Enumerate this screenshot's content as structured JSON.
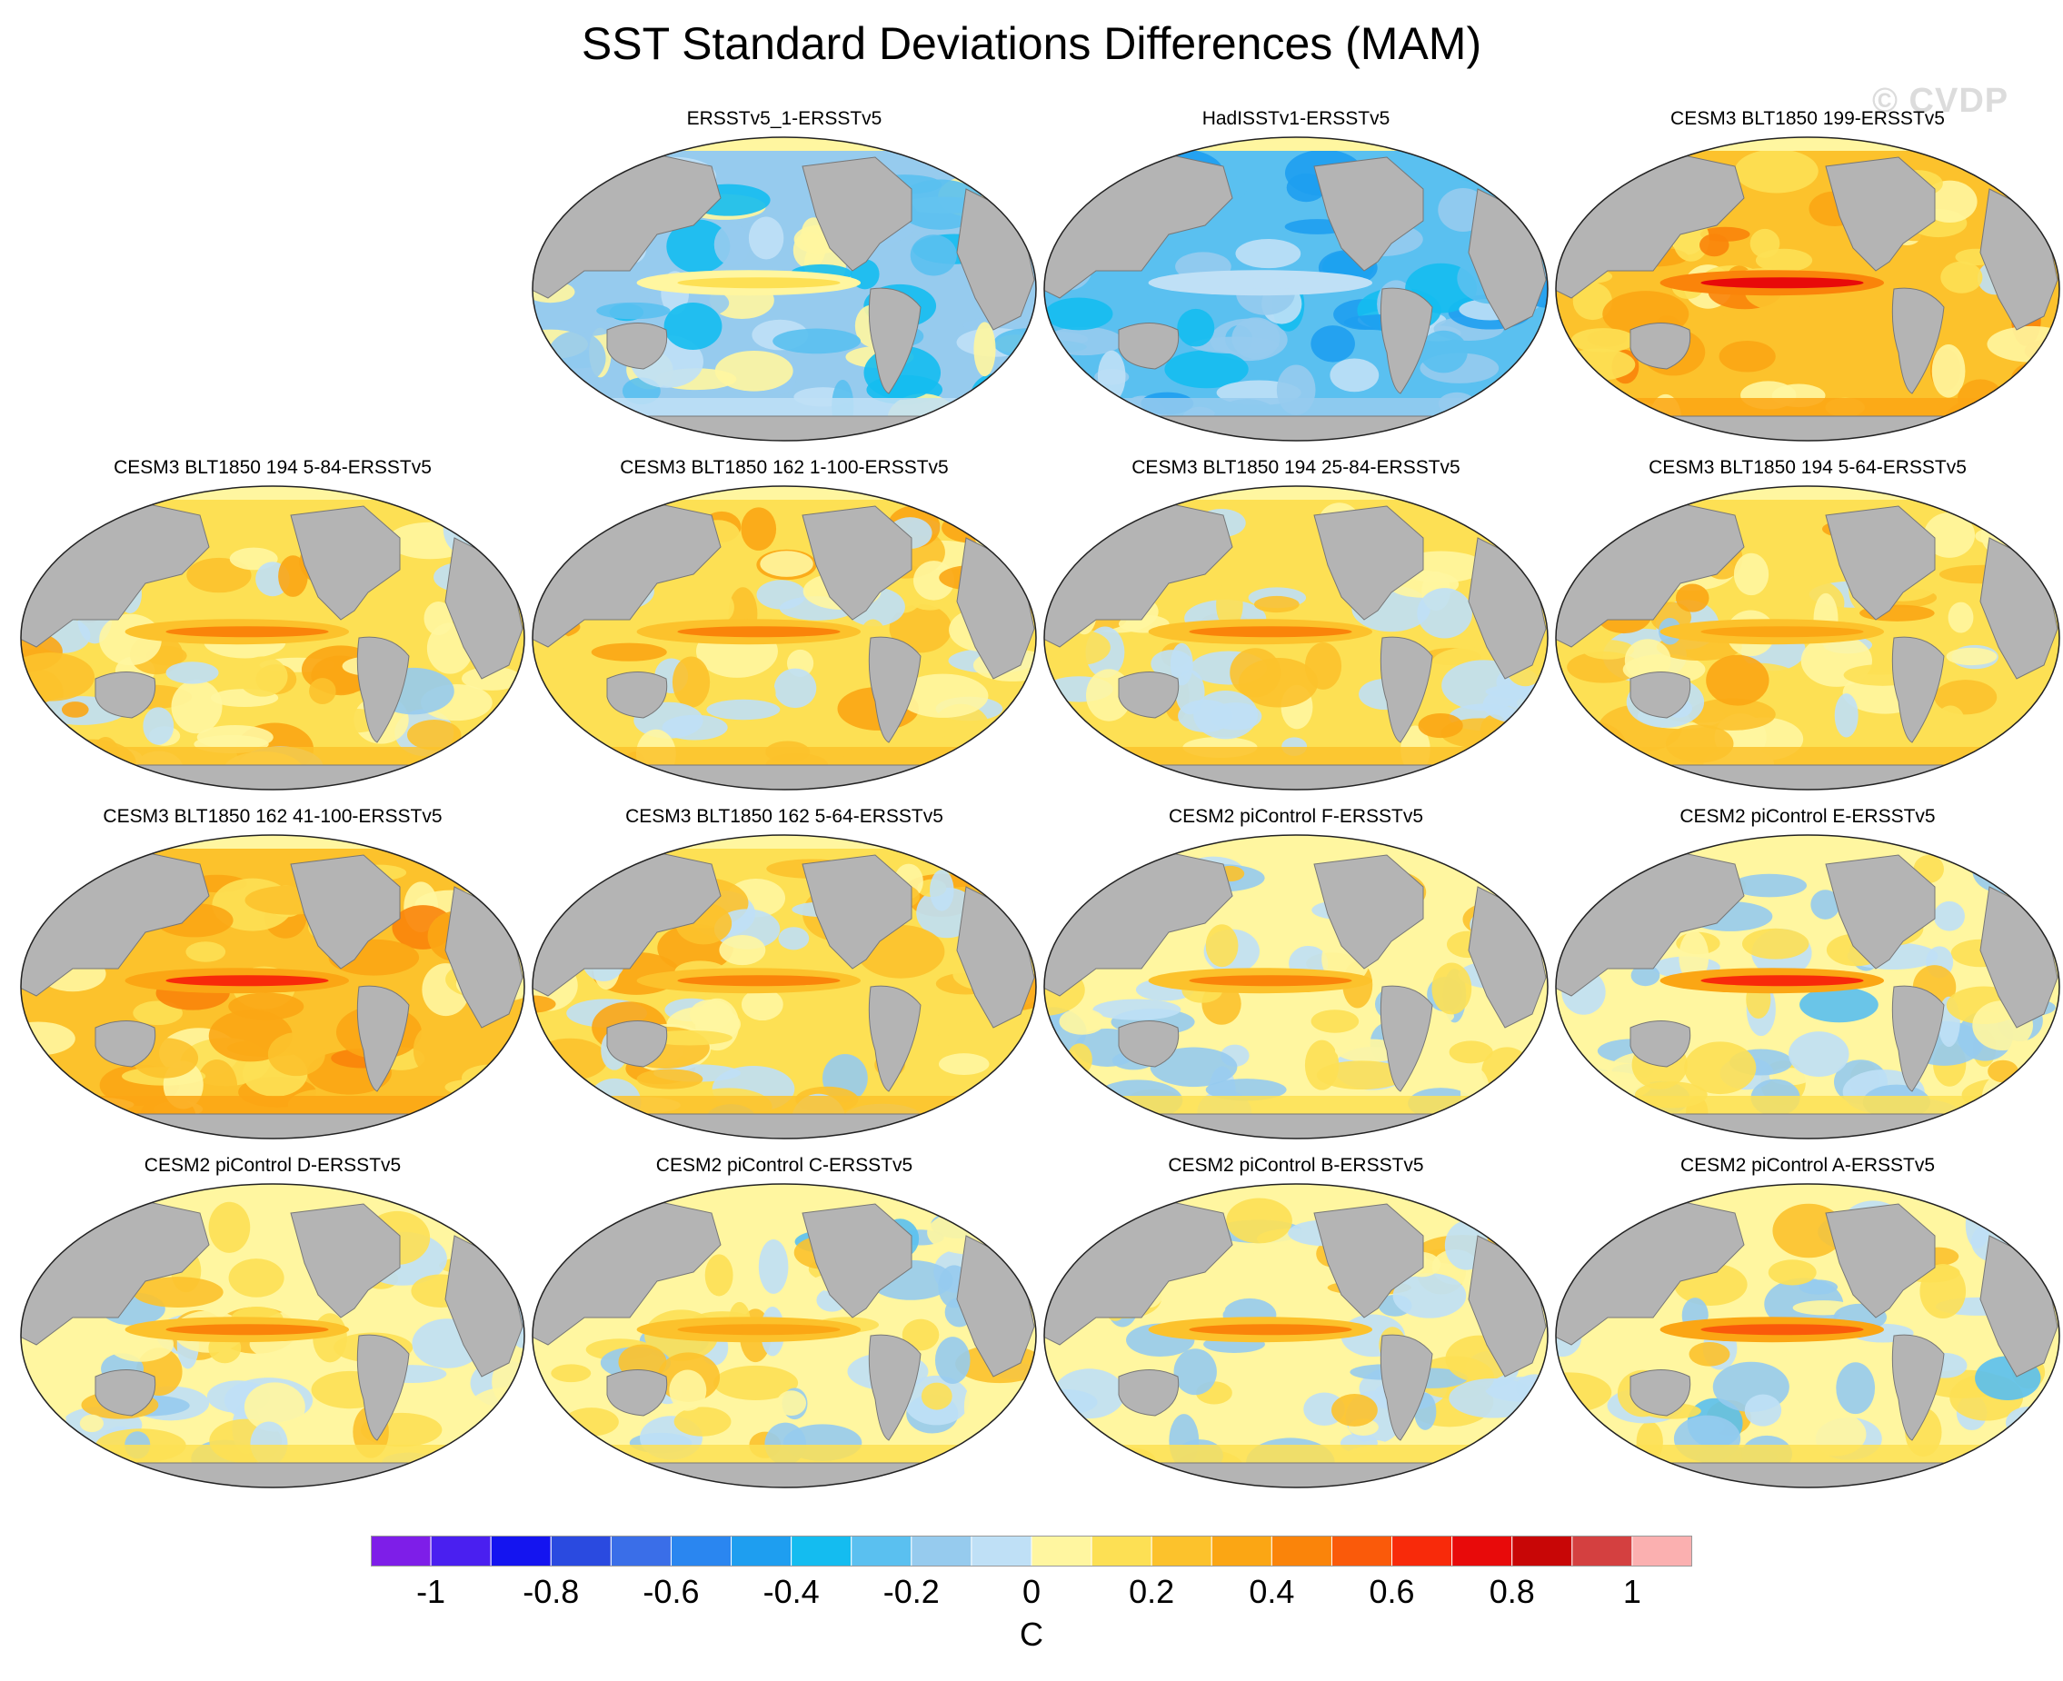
{
  "figure": {
    "title": "SST Standard Deviations Differences (MAM)",
    "watermark": "© CVDP"
  },
  "chart_data": {
    "type": "heatmap",
    "projection": "Robinson-like global maps centered on the Pacific",
    "variable": "SST standard deviation difference",
    "season": "MAM",
    "panels": [
      {
        "title": "ERSSTv5_1-ERSSTv5",
        "row": 1,
        "col": 2,
        "pattern": "weak-negative",
        "eq_pacific_max": 0.1
      },
      {
        "title": "HadISSTv1-ERSSTv5",
        "row": 1,
        "col": 3,
        "pattern": "negative",
        "eq_pacific_max": -0.1
      },
      {
        "title": "CESM3 BLT1850 199-ERSSTv5",
        "row": 1,
        "col": 4,
        "pattern": "strong-positive",
        "eq_pacific_max": 0.7
      },
      {
        "title": "CESM3 BLT1850 194 5-84-ERSSTv5",
        "row": 2,
        "col": 1,
        "pattern": "positive",
        "eq_pacific_max": 0.4
      },
      {
        "title": "CESM3 BLT1850 162 1-100-ERSSTv5",
        "row": 2,
        "col": 2,
        "pattern": "positive",
        "eq_pacific_max": 0.4
      },
      {
        "title": "CESM3 BLT1850 194 25-84-ERSSTv5",
        "row": 2,
        "col": 3,
        "pattern": "positive",
        "eq_pacific_max": 0.4
      },
      {
        "title": "CESM3 BLT1850 194 5-64-ERSSTv5",
        "row": 2,
        "col": 4,
        "pattern": "positive",
        "eq_pacific_max": 0.35
      },
      {
        "title": "CESM3 BLT1850 162 41-100-ERSSTv5",
        "row": 3,
        "col": 1,
        "pattern": "strong-positive",
        "eq_pacific_max": 0.6
      },
      {
        "title": "CESM3 BLT1850 162 5-64-ERSSTv5",
        "row": 3,
        "col": 2,
        "pattern": "positive",
        "eq_pacific_max": 0.45
      },
      {
        "title": "CESM2 piControl F-ERSSTv5",
        "row": 3,
        "col": 3,
        "pattern": "mixed",
        "eq_pacific_max": 0.45
      },
      {
        "title": "CESM2 piControl E-ERSSTv5",
        "row": 3,
        "col": 4,
        "pattern": "mixed",
        "eq_pacific_max": 0.6
      },
      {
        "title": "CESM2 piControl D-ERSSTv5",
        "row": 4,
        "col": 1,
        "pattern": "mixed",
        "eq_pacific_max": 0.45
      },
      {
        "title": "CESM2 piControl C-ERSSTv5",
        "row": 4,
        "col": 2,
        "pattern": "mixed",
        "eq_pacific_max": 0.35
      },
      {
        "title": "CESM2 piControl B-ERSSTv5",
        "row": 4,
        "col": 3,
        "pattern": "mixed",
        "eq_pacific_max": 0.45
      },
      {
        "title": "CESM2 piControl A-ERSSTv5",
        "row": 4,
        "col": 4,
        "pattern": "mixed",
        "eq_pacific_max": 0.55
      }
    ],
    "colorbar": {
      "unit": "C",
      "levels": [
        -1.1,
        -1.0,
        -0.9,
        -0.8,
        -0.7,
        -0.6,
        -0.5,
        -0.4,
        -0.3,
        -0.2,
        -0.1,
        0,
        0.1,
        0.2,
        0.3,
        0.4,
        0.5,
        0.6,
        0.7,
        0.8,
        0.9,
        1.0,
        1.1
      ],
      "tick_labels": [
        "-1",
        "-0.8",
        "-0.6",
        "-0.4",
        "-0.2",
        "0",
        "0.2",
        "0.4",
        "0.6",
        "0.8",
        "1"
      ],
      "colors": [
        "#7e1ee8",
        "#4a1ff0",
        "#1414f0",
        "#2a4ae0",
        "#3a6ee8",
        "#2a86f0",
        "#1e9ef0",
        "#14bcf0",
        "#5ac0f0",
        "#96cbee",
        "#bfe0f6",
        "#fff6a0",
        "#fde054",
        "#fcc22c",
        "#fba614",
        "#fa840a",
        "#fa5a0a",
        "#f82a0a",
        "#e80a0a",
        "#c80606",
        "#d44040",
        "#fbb0b0"
      ]
    }
  }
}
